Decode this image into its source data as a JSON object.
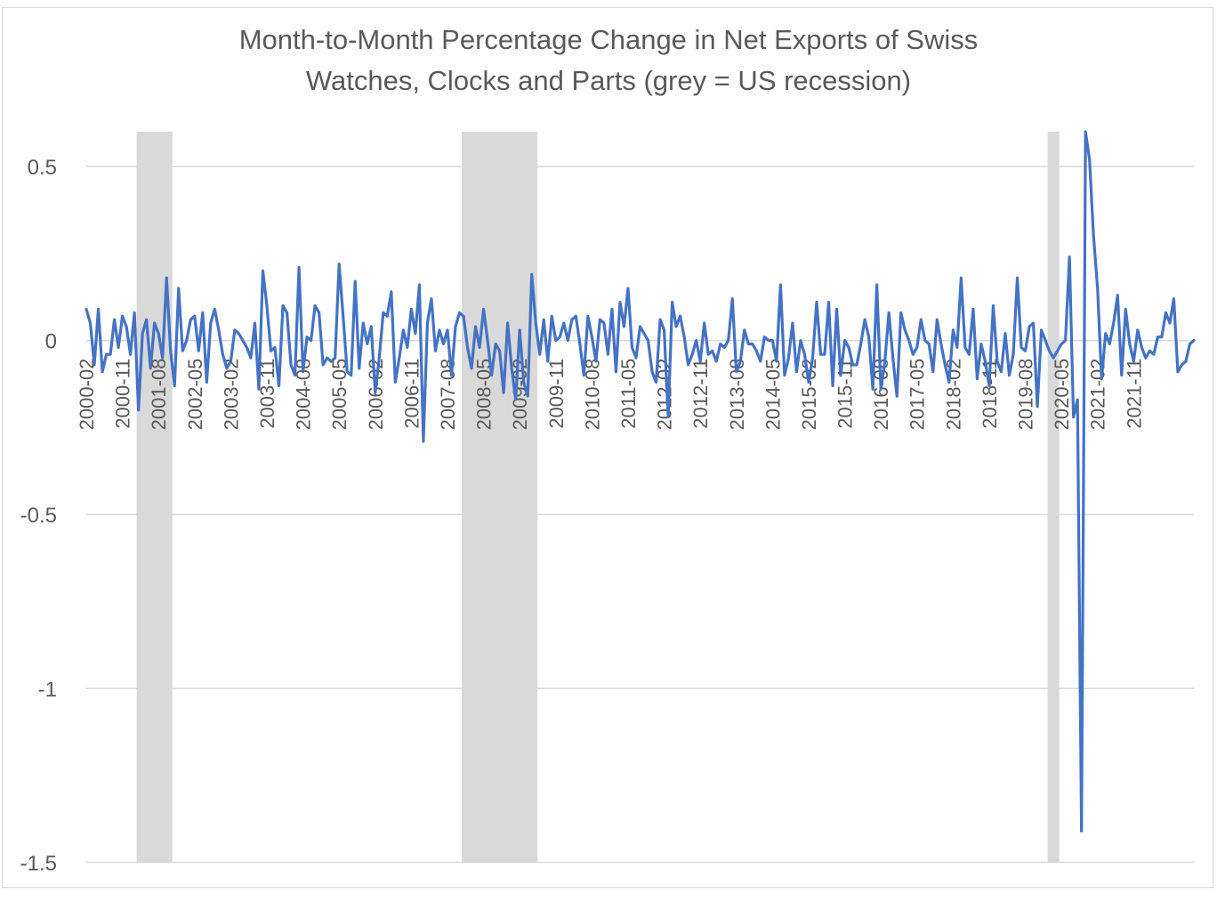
{
  "chart_data": {
    "type": "line",
    "title_lines": [
      "Month-to-Month Percentage Change in Net Exports of Swiss",
      "Watches, Clocks and Parts (grey = US recession)"
    ],
    "xlabel": "",
    "ylabel": "",
    "ylim": [
      -1.5,
      0.6
    ],
    "y_ticks": [
      0.5,
      0,
      -0.5,
      -1,
      -1.5
    ],
    "y_tick_labels": [
      "0.5",
      "0",
      "-0.5",
      "-1",
      "-1.5"
    ],
    "x_start": "2000-02",
    "x_end": "2022-06",
    "x_tick_labels": [
      "2000-02",
      "2000-11",
      "2001-08",
      "2002-05",
      "2003-02",
      "2003-11",
      "2004-08",
      "2005-05",
      "2006-02",
      "2006-11",
      "2007-08",
      "2008-05",
      "2009-02",
      "2009-11",
      "2010-08",
      "2011-05",
      "2012-02",
      "2012-11",
      "2013-08",
      "2014-05",
      "2015-02",
      "2015-11",
      "2016-08",
      "2017-05",
      "2018-02",
      "2018-11",
      "2019-08",
      "2020-05",
      "2021-02",
      "2021-11"
    ],
    "grid": "horizontal",
    "legend": "none",
    "series_color": "#4472c4",
    "recession_color": "#d9d9d9",
    "recessions": [
      {
        "start": "2001-03",
        "end": "2001-11"
      },
      {
        "start": "2007-12",
        "end": "2009-06"
      },
      {
        "start": "2020-02",
        "end": "2020-04"
      }
    ],
    "series": [
      {
        "values": [
          0.09,
          0.05,
          -0.07,
          0.09,
          -0.09,
          -0.04,
          -0.04,
          0.06,
          -0.02,
          0.07,
          0.04,
          -0.04,
          0.08,
          -0.2,
          0.02,
          0.06,
          -0.08,
          0.05,
          0.02,
          -0.05,
          0.18,
          -0.03,
          -0.13,
          0.15,
          -0.03,
          0.0,
          0.06,
          0.07,
          -0.03,
          0.08,
          -0.12,
          0.05,
          0.09,
          0.03,
          -0.04,
          -0.08,
          -0.06,
          0.03,
          0.02,
          0.0,
          -0.02,
          -0.05,
          0.05,
          -0.14,
          0.2,
          0.1,
          -0.03,
          -0.02,
          -0.13,
          0.1,
          0.08,
          -0.07,
          -0.1,
          0.21,
          -0.09,
          0.01,
          0.0,
          0.1,
          0.08,
          -0.07,
          -0.05,
          -0.06,
          -0.05,
          0.22,
          0.07,
          -0.09,
          -0.1,
          0.17,
          -0.08,
          0.05,
          -0.01,
          0.04,
          -0.15,
          -0.05,
          0.08,
          0.07,
          0.14,
          -0.12,
          -0.05,
          0.03,
          -0.02,
          0.09,
          0.02,
          0.16,
          -0.29,
          0.05,
          0.12,
          -0.03,
          0.03,
          -0.01,
          0.03,
          -0.1,
          0.04,
          0.08,
          0.07,
          -0.02,
          -0.08,
          0.04,
          -0.02,
          0.09,
          0.0,
          -0.1,
          -0.01,
          -0.03,
          -0.15,
          0.05,
          -0.08,
          -0.17,
          0.03,
          -0.12,
          -0.16,
          0.19,
          0.05,
          -0.04,
          0.06,
          -0.06,
          0.07,
          0.0,
          0.01,
          0.05,
          0.0,
          0.06,
          0.07,
          -0.01,
          -0.1,
          0.07,
          0.01,
          -0.06,
          0.06,
          0.05,
          -0.04,
          0.09,
          -0.09,
          0.11,
          0.04,
          0.15,
          -0.02,
          -0.05,
          0.04,
          0.02,
          0.0,
          -0.09,
          -0.12,
          0.06,
          0.03,
          -0.22,
          0.11,
          0.04,
          0.07,
          0.01,
          -0.07,
          -0.04,
          0.0,
          -0.06,
          0.05,
          -0.04,
          -0.03,
          -0.06,
          -0.01,
          -0.02,
          0.0,
          0.12,
          -0.09,
          -0.06,
          0.03,
          -0.01,
          -0.01,
          -0.03,
          -0.06,
          0.01,
          0.0,
          0.0,
          -0.06,
          0.16,
          -0.1,
          -0.05,
          0.05,
          -0.09,
          0.0,
          -0.04,
          -0.12,
          -0.05,
          0.11,
          -0.04,
          -0.04,
          0.11,
          -0.13,
          0.09,
          -0.1,
          0.0,
          -0.02,
          -0.07,
          -0.07,
          -0.01,
          0.06,
          0.01,
          -0.14,
          0.16,
          -0.14,
          -0.06,
          0.08,
          -0.05,
          -0.16,
          0.08,
          0.03,
          0.0,
          -0.04,
          -0.02,
          0.06,
          0.0,
          -0.01,
          -0.09,
          0.06,
          -0.01,
          -0.07,
          -0.12,
          0.03,
          -0.02,
          0.18,
          -0.02,
          -0.04,
          0.09,
          -0.11,
          -0.01,
          -0.06,
          -0.13,
          0.1,
          -0.06,
          -0.09,
          0.02,
          -0.1,
          -0.04,
          0.18,
          -0.02,
          -0.03,
          0.04,
          0.05,
          -0.19,
          0.03,
          0.0,
          -0.03,
          -0.05,
          -0.03,
          -0.01,
          0.0,
          0.24,
          -0.22,
          -0.17,
          -1.41,
          0.6,
          0.52,
          0.3,
          0.15,
          -0.11,
          0.02,
          -0.01,
          0.05,
          0.13,
          -0.1,
          0.09,
          -0.01,
          -0.06,
          0.03,
          -0.02,
          -0.05,
          -0.03,
          -0.04,
          0.01,
          0.01,
          0.08,
          0.05,
          0.12,
          -0.09,
          -0.07,
          -0.06,
          -0.01,
          0.0
        ]
      }
    ]
  }
}
